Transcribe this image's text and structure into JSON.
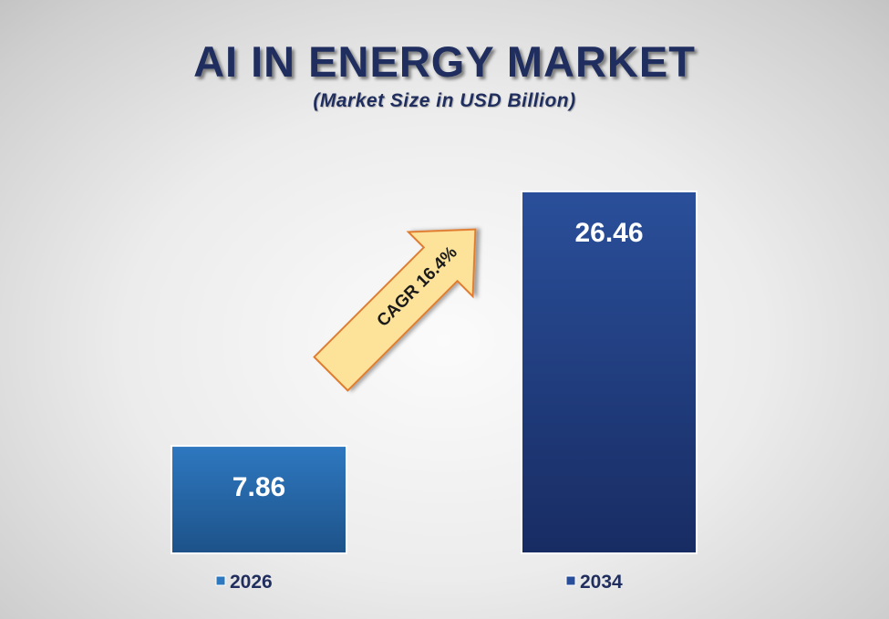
{
  "chart_data": {
    "type": "bar",
    "title": "AI IN ENERGY MARKET",
    "subtitle": "(Market Size in USD Billion)",
    "categories": [
      "2026",
      "2034"
    ],
    "values": [
      7.86,
      26.46
    ],
    "value_labels": [
      "7.86",
      "26.46"
    ],
    "ylim": [
      0,
      26.46
    ],
    "grid": false,
    "legend_position": "bottom",
    "annotation": "CAGR 16.4%",
    "colors": {
      "bar_2026_top": "#2e78c0",
      "bar_2026_bottom": "#1d5289",
      "bar_2034_top": "#2a4f9a",
      "bar_2034_bottom": "#182c63",
      "arrow_fill": "#fde29a",
      "arrow_stroke": "#e07b2d",
      "title": "#1f2e5e"
    }
  }
}
